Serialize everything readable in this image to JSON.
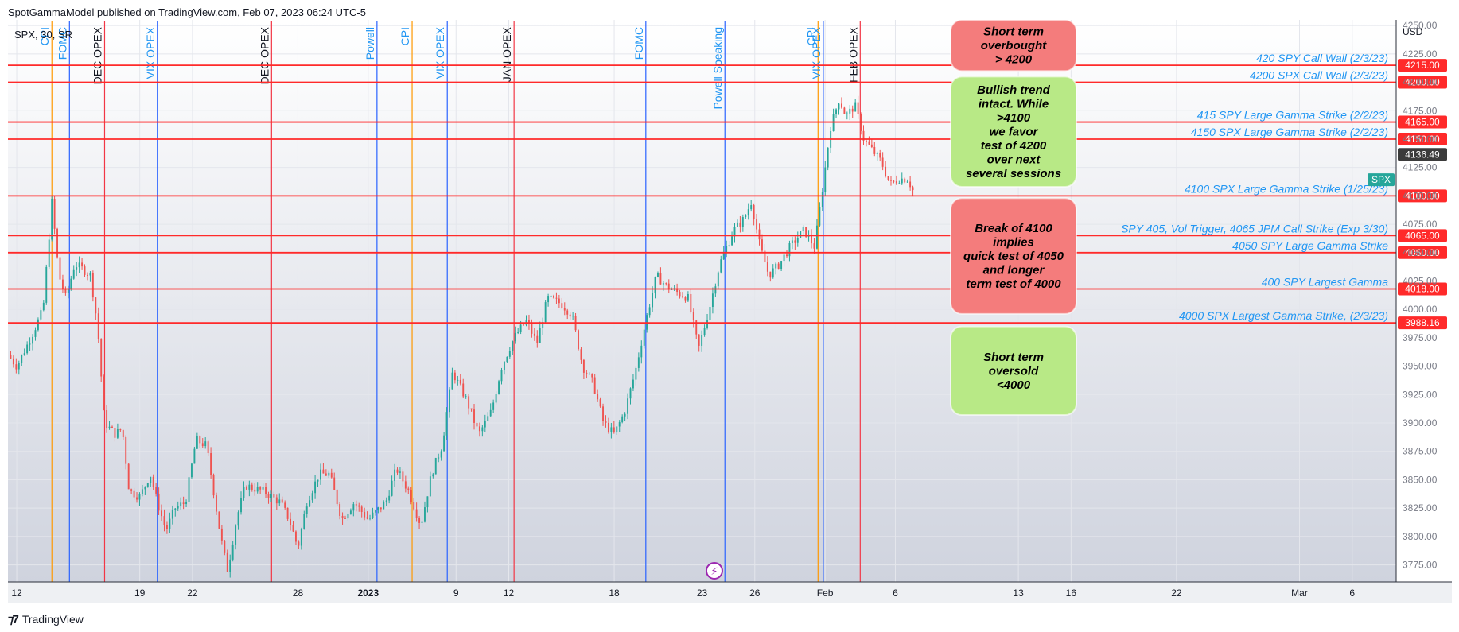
{
  "header": {
    "publisher": "SpotGammaModel published on TradingView.com, Feb 07, 2023 06:24 UTC-5",
    "symbol": "SPX, 30, SR"
  },
  "footer": {
    "brand": "TradingView"
  },
  "colors": {
    "red_level": "#ff2a2a",
    "event_blue": "#2962ff",
    "event_orange": "#ff9800",
    "event_red": "#f23645",
    "label_blue": "#2196f3",
    "up_candle": "#26a69a",
    "down_candle": "#ef5350",
    "box_red": "#f47c7c",
    "box_green": "#b8e986"
  },
  "chart_data": {
    "type": "candlestick",
    "currency_label": "USD",
    "y_axis": {
      "min": 3760,
      "max": 4255,
      "ticks": [
        3775,
        3800,
        3825,
        3850,
        3875,
        3900,
        3925,
        3950,
        3975,
        4000,
        4025,
        4050,
        4075,
        4100,
        4125,
        4150,
        4175,
        4200,
        4225,
        4250
      ]
    },
    "x_axis": {
      "ticks": [
        {
          "label": "12",
          "x": 0
        },
        {
          "label": "19",
          "x": 7
        },
        {
          "label": "22",
          "x": 10
        },
        {
          "label": "28",
          "x": 16
        },
        {
          "label": "2023",
          "x": 20,
          "bold": true
        },
        {
          "label": "9",
          "x": 25
        },
        {
          "label": "12",
          "x": 28
        },
        {
          "label": "18",
          "x": 34
        },
        {
          "label": "23",
          "x": 39
        },
        {
          "label": "26",
          "x": 42
        },
        {
          "label": "Feb",
          "x": 46
        },
        {
          "label": "6",
          "x": 50
        },
        {
          "label": "13",
          "x": 57
        },
        {
          "label": "16",
          "x": 60
        },
        {
          "label": "22",
          "x": 66
        },
        {
          "label": "Mar",
          "x": 73
        },
        {
          "label": "6",
          "x": 76
        }
      ],
      "range": [
        -0.5,
        78.5
      ]
    },
    "price_path": [
      [
        -0.5,
        3960
      ],
      [
        0,
        3950
      ],
      [
        0.8,
        3975
      ],
      [
        1.5,
        4000
      ],
      [
        2,
        4095
      ],
      [
        2.4,
        4030
      ],
      [
        2.8,
        4010
      ],
      [
        3.3,
        4040
      ],
      [
        3.8,
        4035
      ],
      [
        4.2,
        4030
      ],
      [
        4.6,
        3985
      ],
      [
        5,
        3900
      ],
      [
        5.6,
        3890
      ],
      [
        6,
        3895
      ],
      [
        6.4,
        3840
      ],
      [
        7,
        3835
      ],
      [
        7.6,
        3855
      ],
      [
        8,
        3830
      ],
      [
        8.5,
        3805
      ],
      [
        9,
        3825
      ],
      [
        9.6,
        3830
      ],
      [
        10.2,
        3885
      ],
      [
        10.8,
        3880
      ],
      [
        11.2,
        3840
      ],
      [
        11.6,
        3800
      ],
      [
        12,
        3770
      ],
      [
        12.5,
        3815
      ],
      [
        13,
        3845
      ],
      [
        14,
        3840
      ],
      [
        15,
        3830
      ],
      [
        15.5,
        3815
      ],
      [
        16,
        3790
      ],
      [
        16.5,
        3830
      ],
      [
        17.2,
        3855
      ],
      [
        17.8,
        3855
      ],
      [
        18.5,
        3815
      ],
      [
        19.2,
        3830
      ],
      [
        20,
        3815
      ],
      [
        21,
        3830
      ],
      [
        21.6,
        3860
      ],
      [
        22.3,
        3840
      ],
      [
        23,
        3810
      ],
      [
        23.6,
        3855
      ],
      [
        24.2,
        3880
      ],
      [
        24.8,
        3945
      ],
      [
        25.6,
        3920
      ],
      [
        26.3,
        3890
      ],
      [
        27,
        3910
      ],
      [
        27.6,
        3950
      ],
      [
        28.3,
        3975
      ],
      [
        29,
        3990
      ],
      [
        29.6,
        3970
      ],
      [
        30.2,
        4010
      ],
      [
        31,
        4005
      ],
      [
        31.6,
        3995
      ],
      [
        32.2,
        3950
      ],
      [
        32.8,
        3935
      ],
      [
        33.4,
        3900
      ],
      [
        34,
        3890
      ],
      [
        34.6,
        3910
      ],
      [
        35.2,
        3945
      ],
      [
        35.8,
        3990
      ],
      [
        36.4,
        4030
      ],
      [
        37,
        4020
      ],
      [
        37.6,
        4015
      ],
      [
        38.2,
        4010
      ],
      [
        38.8,
        3965
      ],
      [
        39.4,
        4000
      ],
      [
        40,
        4040
      ],
      [
        40.8,
        4070
      ],
      [
        41.4,
        4080
      ],
      [
        41.8,
        4095
      ],
      [
        42.3,
        4055
      ],
      [
        42.8,
        4030
      ],
      [
        43.4,
        4040
      ],
      [
        44,
        4055
      ],
      [
        44.8,
        4070
      ],
      [
        45.4,
        4055
      ],
      [
        45.8,
        4100
      ],
      [
        46.3,
        4160
      ],
      [
        46.8,
        4185
      ],
      [
        47.2,
        4170
      ],
      [
        47.7,
        4180
      ],
      [
        48.2,
        4150
      ],
      [
        48.7,
        4140
      ],
      [
        49.2,
        4130
      ],
      [
        49.7,
        4110
      ],
      [
        50.2,
        4115
      ],
      [
        50.7,
        4115
      ],
      [
        51,
        4105
      ]
    ],
    "levels": [
      {
        "value": 4215,
        "label": "420 SPY Call Wall (2/3/23)",
        "badge": "4215.00"
      },
      {
        "value": 4200,
        "label": "4200 SPX Call Wall (2/3/23)",
        "badge": "4200.00"
      },
      {
        "value": 4165,
        "label": "415 SPY Large Gamma Strike (2/2/23)",
        "badge": "4165.00"
      },
      {
        "value": 4150,
        "label": "4150 SPX Large Gamma Strike (2/2/23)",
        "badge": "4150.00"
      },
      {
        "value": 4100,
        "label": "4100 SPX Large Gamma Strike (1/25/23)",
        "badge": "4100.00"
      },
      {
        "value": 4065,
        "label": "SPY 405, Vol Trigger, 4065 JPM Call Strike (Exp 3/30)",
        "badge": "4065.00"
      },
      {
        "value": 4050,
        "label": "4050 SPY Large Gamma Strike",
        "badge": "4050.00"
      },
      {
        "value": 4018,
        "label": "400 SPY Largest Gamma",
        "badge": "4018.00"
      },
      {
        "value": 3988.16,
        "label": "4000 SPX Largest Gamma Strike, (2/3/23)",
        "badge": "3988.16"
      }
    ],
    "last_price": {
      "value": 4136.49,
      "badge": "4136.49"
    },
    "symbol_tag": {
      "value": 4110,
      "label": "SPX"
    },
    "events": [
      {
        "label": "CPI",
        "x": 2,
        "kind": "orange"
      },
      {
        "label": "FOMC",
        "x": 3,
        "kind": "blue"
      },
      {
        "label": "DEC OPEX",
        "x": 5,
        "kind": "red"
      },
      {
        "label": "VIX OPEX",
        "x": 8,
        "kind": "blue"
      },
      {
        "label": "DEC OPEX",
        "x": 14.5,
        "kind": "red"
      },
      {
        "label": "Powell",
        "x": 20.5,
        "kind": "blue"
      },
      {
        "label": "CPI",
        "x": 22.5,
        "kind": "orange"
      },
      {
        "label": "VIX OPEX",
        "x": 24.5,
        "kind": "blue"
      },
      {
        "label": "JAN OPEX",
        "x": 28.3,
        "kind": "red"
      },
      {
        "label": "FOMC",
        "x": 35.8,
        "kind": "blue"
      },
      {
        "label": "Powell Speaking",
        "x": 40.3,
        "kind": "blue"
      },
      {
        "label": "CPI",
        "x": 45.6,
        "kind": "orange"
      },
      {
        "label": "VIX OPEX",
        "x": 45.9,
        "kind": "blue"
      },
      {
        "label": "FEB OPEX",
        "x": 48,
        "kind": "red"
      }
    ],
    "boxes": [
      {
        "text": [
          "Short term",
          "overbought",
          "> 4200"
        ],
        "color": "red",
        "top": 4255,
        "bottom": 4210
      },
      {
        "text": [
          "Bullish trend",
          "intact. While",
          ">4100",
          "we favor",
          "test of 4200",
          "over next",
          "several sessions"
        ],
        "color": "green",
        "top": 4205,
        "bottom": 4108
      },
      {
        "text": [
          "Break of 4100",
          "implies",
          "quick test of 4050",
          "and longer",
          "term test of 4000"
        ],
        "color": "red",
        "top": 4098,
        "bottom": 3996
      },
      {
        "text": [
          "Short term",
          "oversold",
          "<4000"
        ],
        "color": "green",
        "top": 3985,
        "bottom": 3907
      }
    ],
    "grid": true
  }
}
